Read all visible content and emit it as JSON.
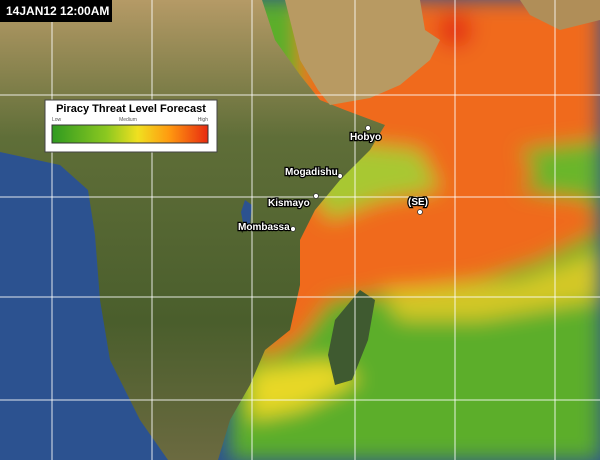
{
  "timestamp": "14JAN12 12:00AM",
  "legend": {
    "title": "Piracy Threat Level Forecast",
    "labels": [
      "Low",
      "Medium",
      "High"
    ]
  },
  "places": [
    {
      "label": "Hobyo"
    },
    {
      "label": "Mogadishu"
    },
    {
      "label": "Kismayo"
    },
    {
      "label": "Mombassa"
    },
    {
      "label": "(SE)"
    }
  ]
}
